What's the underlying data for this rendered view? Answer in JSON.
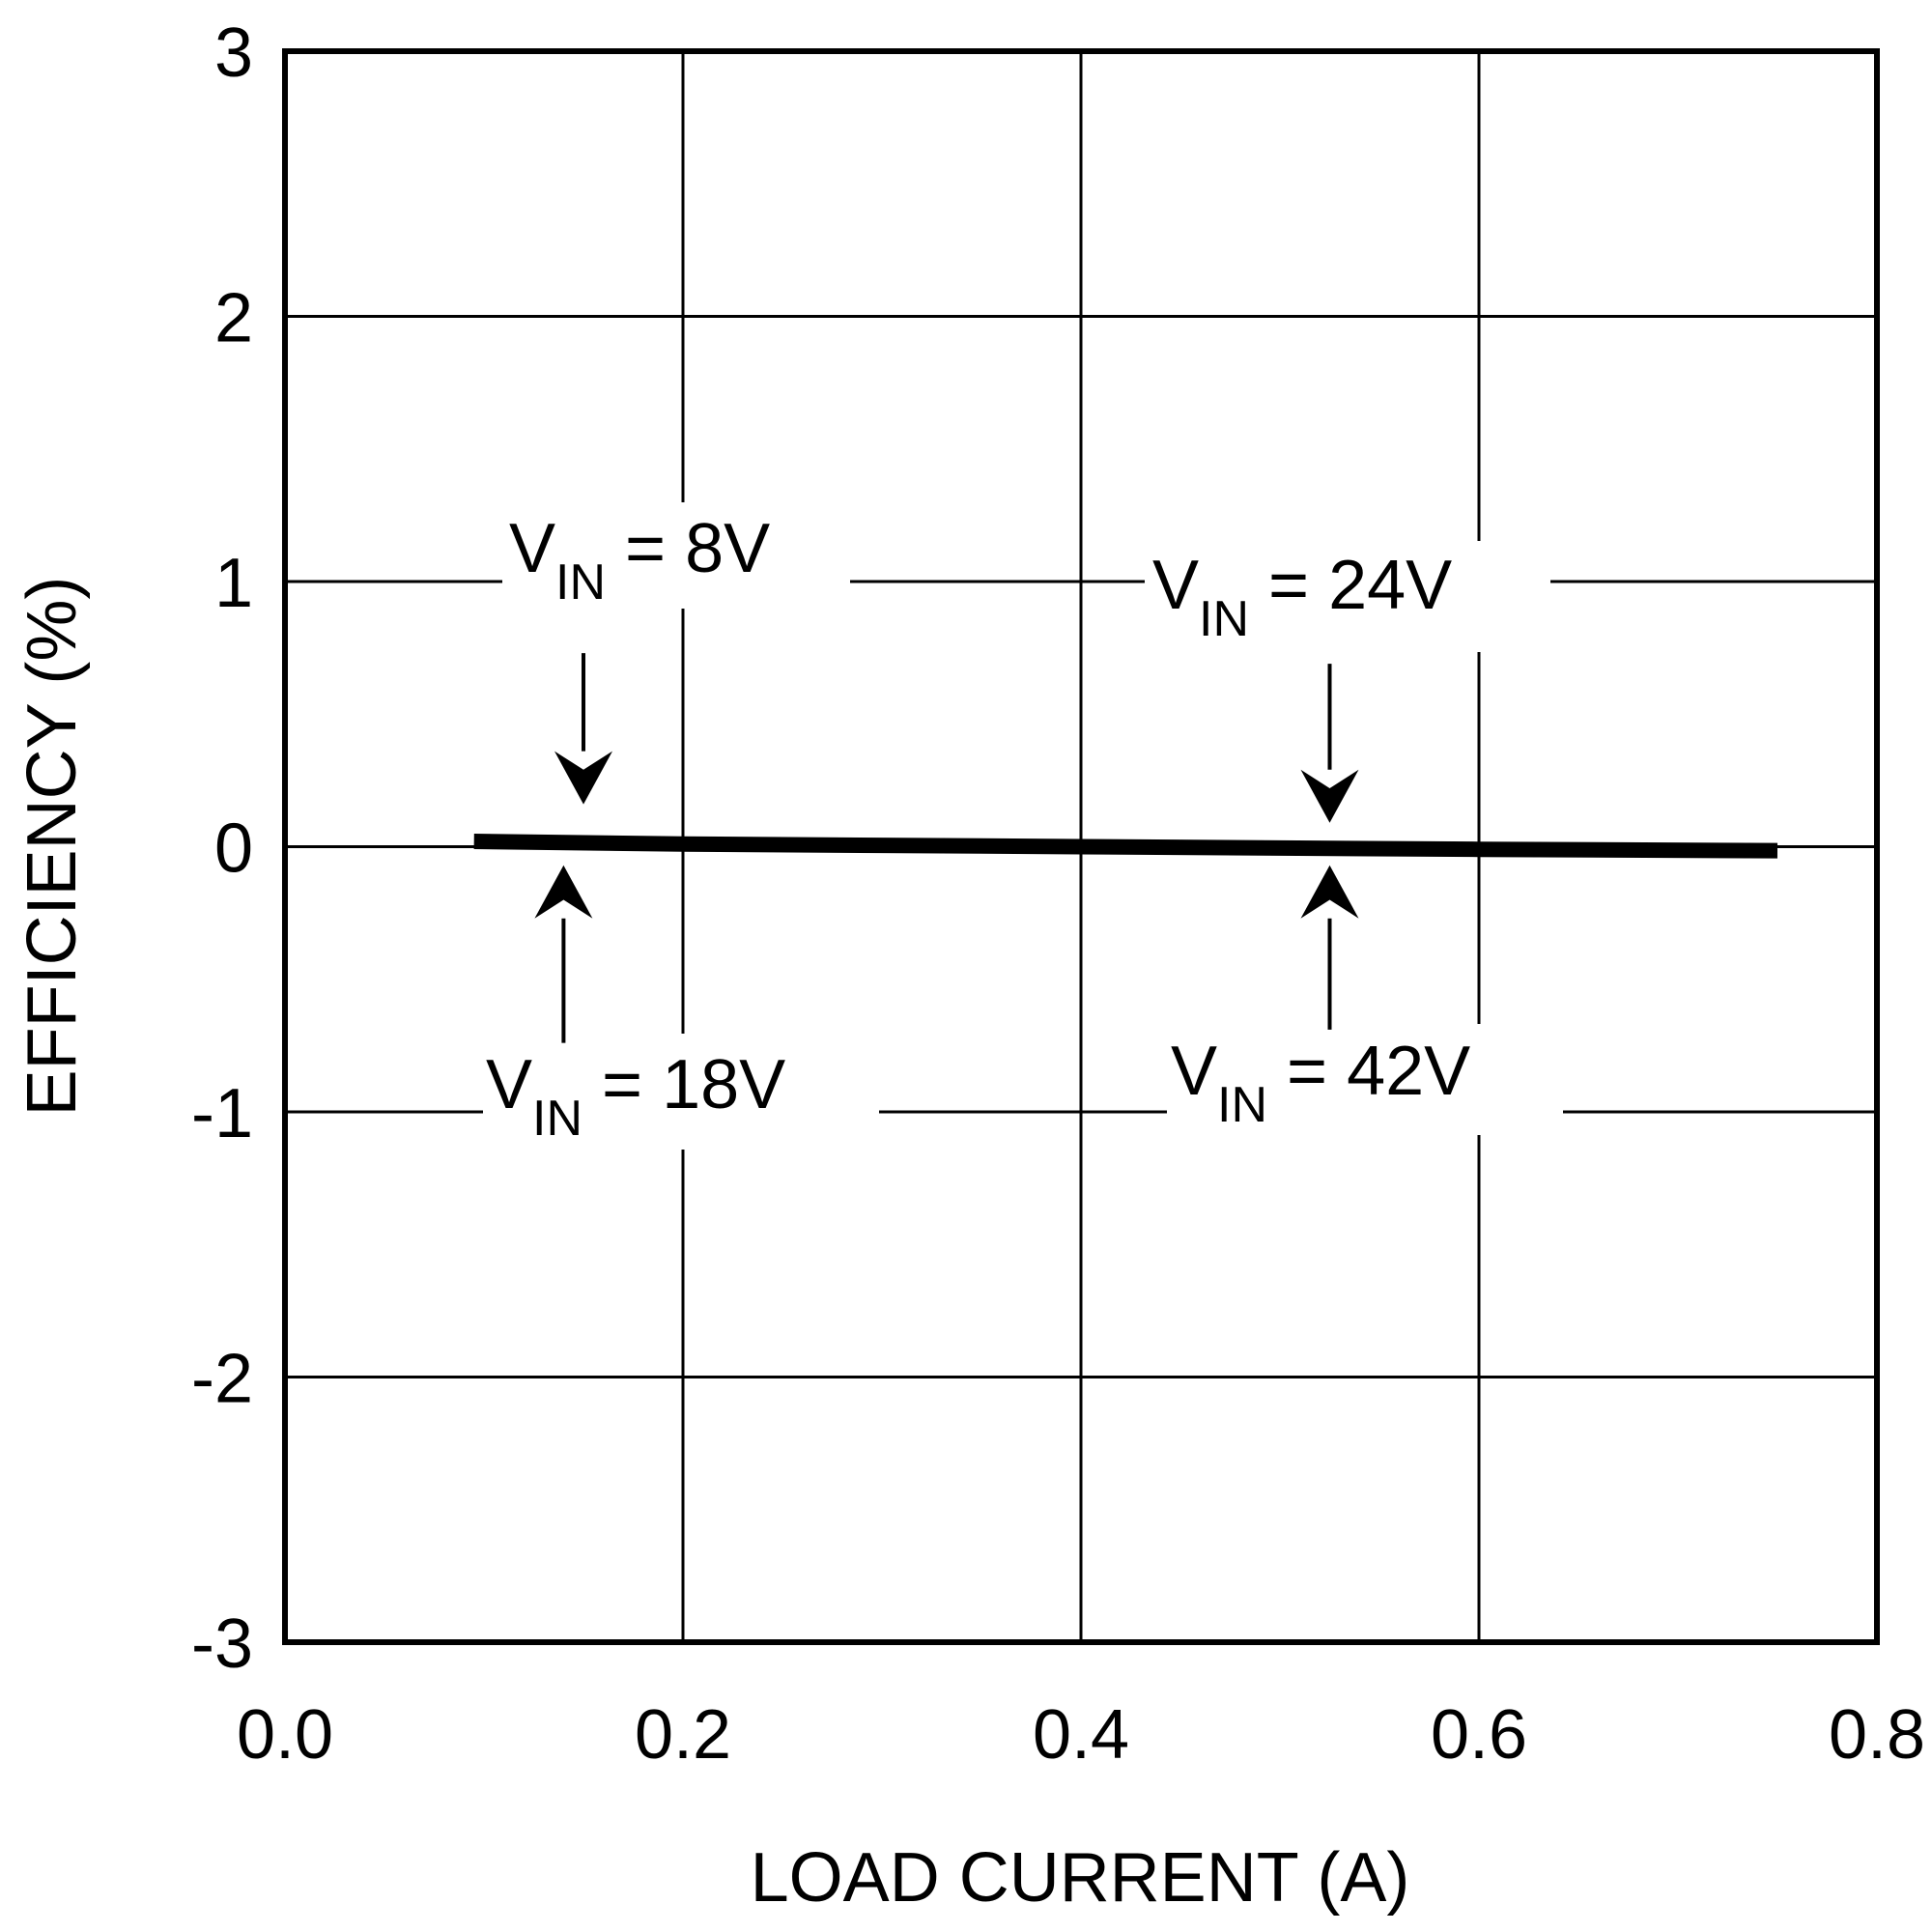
{
  "chart_data": {
    "type": "line",
    "xlabel": "LOAD CURRENT (A)",
    "ylabel": "EFFICIENCY (%)",
    "xlim": [
      0.0,
      0.8
    ],
    "ylim": [
      -3,
      3
    ],
    "x_ticks": [
      "0.0",
      "0.2",
      "0.4",
      "0.6",
      "0.8"
    ],
    "y_ticks": [
      "3",
      "2",
      "1",
      "0",
      "-1",
      "-2",
      "-3"
    ],
    "grid": true,
    "series": [
      {
        "x": [
          0.095,
          0.2,
          0.3,
          0.4,
          0.5,
          0.6,
          0.75
        ],
        "y": [
          0.02,
          0.01,
          0.005,
          0.0,
          -0.005,
          -0.01,
          -0.015
        ]
      }
    ],
    "annotations": [
      {
        "main": "V",
        "sub": "IN",
        "rest": " = 8V",
        "arrow_x": 0.15,
        "from_y": 0.73,
        "to_y": 0.16
      },
      {
        "main": "V",
        "sub": "IN",
        "rest": " = 24V",
        "arrow_x": 0.525,
        "from_y": 0.69,
        "to_y": 0.09
      },
      {
        "main": "V",
        "sub": "IN",
        "rest": " = 18V",
        "arrow_x": 0.14,
        "from_y": -0.74,
        "to_y": -0.07
      },
      {
        "main": "V",
        "sub": "IN",
        "rest": " = 42V",
        "arrow_x": 0.525,
        "from_y": -0.69,
        "to_y": -0.07
      }
    ]
  }
}
